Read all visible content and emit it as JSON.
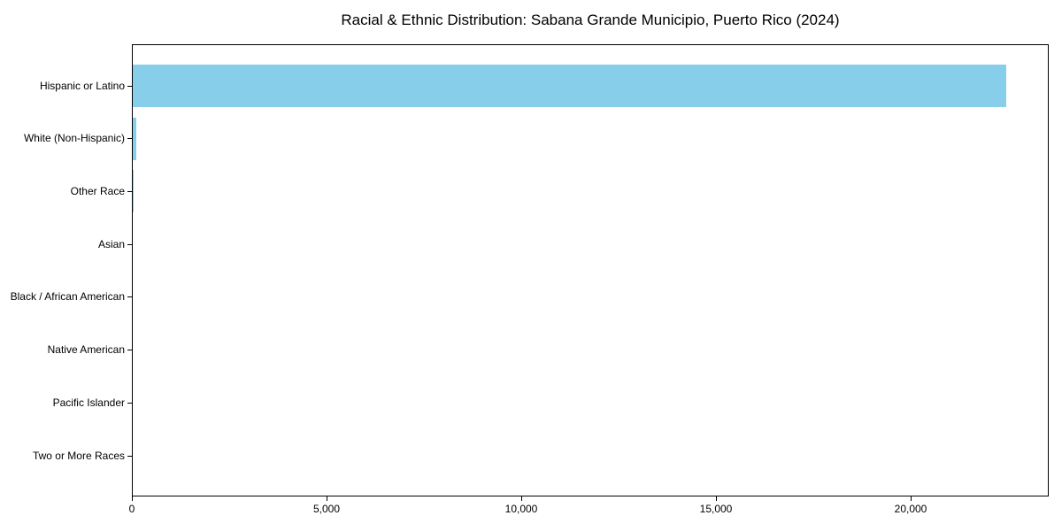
{
  "title": "Racial & Ethnic Distribution: Sabana Grande Municipio, Puerto Rico (2024)",
  "chart_data": {
    "type": "bar",
    "orientation": "horizontal",
    "title": "Racial & Ethnic Distribution: Sabana Grande Municipio, Puerto Rico (2024)",
    "categories": [
      "Hispanic or Latino",
      "White (Non-Hispanic)",
      "Other Race",
      "Asian",
      "Black / African American",
      "Native American",
      "Pacific Islander",
      "Two or More Races"
    ],
    "values": [
      22430,
      90,
      25,
      0,
      0,
      0,
      0,
      0
    ],
    "bar_color": "#87CEEB",
    "xlabel": "",
    "ylabel": "",
    "xlim": [
      0,
      23545
    ],
    "xticks": [
      0,
      5000,
      10000,
      15000,
      20000
    ],
    "xtick_labels": [
      "0",
      "5,000",
      "10,000",
      "15,000",
      "20,000"
    ],
    "grid": false,
    "legend_position": "none"
  }
}
